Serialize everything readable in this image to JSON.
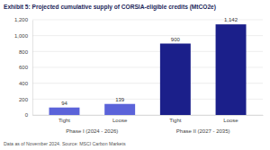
{
  "chart_data": {
    "type": "bar",
    "title": "Exhibit 5: Projected cumulative supply of CORSIA-eligible credits (MtCO2e)",
    "categories": [
      "Tight",
      "Loose",
      "Tight",
      "Loose"
    ],
    "groups": [
      "Phase I (2024 - 2026)",
      "Phase II (2027 - 2035)"
    ],
    "values": [
      94,
      139,
      900,
      1142
    ],
    "value_labels": [
      "94",
      "139",
      "900",
      "1,142"
    ],
    "colors": [
      "#5b63d9",
      "#5b63d9",
      "#1b1f8a",
      "#1b1f8a"
    ],
    "ylim": [
      0,
      1200
    ],
    "yticks": [
      0,
      200,
      400,
      600,
      800,
      {
        "value": 1000,
        "label": "1,000"
      },
      {
        "value": 1200,
        "label": "1,200"
      }
    ],
    "grid": true,
    "data_labels": true,
    "note": "Data as of November 2024. Source: MSCI Carbon Markets"
  }
}
